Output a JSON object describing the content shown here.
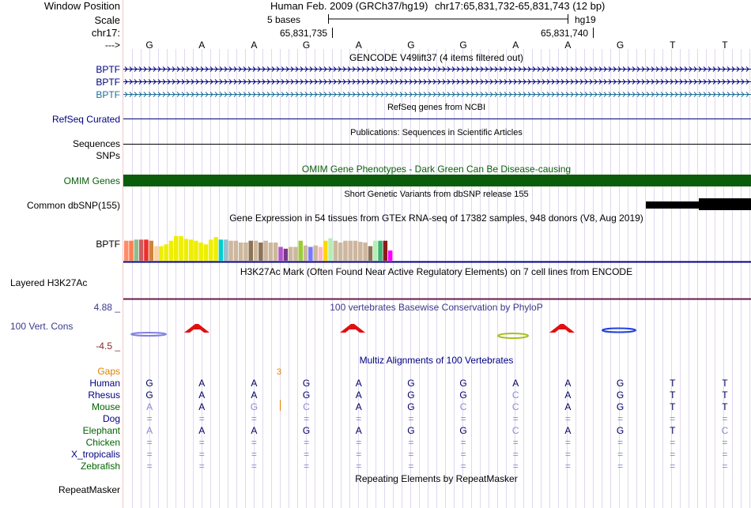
{
  "header": {
    "window_position_label": "Window Position",
    "assembly_text": "Human Feb. 2009 (GRCh37/hg19)",
    "position_text": "chr17:65,831,732-65,831,743 (12 bp)",
    "scale_label": "Scale",
    "scale_text": "5 bases",
    "scale_db": "hg19",
    "chrom_label": "chr17:",
    "pos_tick_1": "65,831,735",
    "pos_tick_2": "65,831,740",
    "strand_label": "--->"
  },
  "bases": [
    "G",
    "A",
    "A",
    "G",
    "A",
    "G",
    "G",
    "A",
    "A",
    "G",
    "T",
    "T"
  ],
  "tracks": {
    "gencode_title": "GENCODE V49lift37 (4 items filtered out)",
    "gencode_genes": [
      "BPTF",
      "BPTF",
      "BPTF"
    ],
    "refseq_title": "RefSeq genes from NCBI",
    "refseq_label": "RefSeq Curated",
    "pubs_title": "Publications: Sequences in Scientific Articles",
    "pubs_label": "Sequences",
    "snps_label": "SNPs",
    "omim_title": "OMIM Gene Phenotypes - Dark Green Can Be Disease-causing",
    "omim_label": "OMIM Genes",
    "dbsnp_title": "Short Genetic Variants from dbSNP release 155",
    "dbsnp_label": "Common dbSNP(155)",
    "gtex_title": "Gene Expression in 54 tissues from GTEx RNA-seq of 17382 samples, 948 donors (V8, Aug 2019)",
    "gtex_label": "BPTF",
    "h3k27_title": "H3K27Ac Mark (Often Found Near Active Regulatory Elements) on 7 cell lines from ENCODE",
    "h3k27_label": "Layered H3K27Ac",
    "cons_title": "100 vertebrates Basewise Conservation by PhyloP",
    "cons_label": "100 Vert. Cons",
    "cons_max": "4.88 _",
    "cons_min": "-4.5 _",
    "multiz_title": "Multiz Alignments of 100 Vertebrates",
    "gaps_label": "Gaps",
    "gaps_value": "3",
    "rmsk_title": "Repeating Elements by RepeatMasker",
    "rmsk_label": "RepeatMasker"
  },
  "gtex_levels": [
    0.55,
    0.55,
    0.58,
    0.58,
    0.58,
    0.55,
    0.4,
    0.4,
    0.45,
    0.55,
    0.68,
    0.68,
    0.6,
    0.58,
    0.55,
    0.5,
    0.45,
    0.58,
    0.65,
    0.58,
    0.58,
    0.55,
    0.55,
    0.5,
    0.5,
    0.55,
    0.55,
    0.5,
    0.55,
    0.5,
    0.5,
    0.38,
    0.33,
    0.38,
    0.38,
    0.55,
    0.42,
    0.38,
    0.42,
    0.38,
    0.55,
    0.62,
    0.55,
    0.5,
    0.55,
    0.55,
    0.55,
    0.52,
    0.5,
    0.4,
    0.55,
    0.55,
    0.55,
    0.28
  ],
  "gtex_colors": [
    "#ff8c69",
    "#ff7f50",
    "#8fbc8f",
    "#cd5c5c",
    "#ee2c2c",
    "#cd853f",
    "#ffd39b",
    "#eeee00",
    "#eeee00",
    "#eeee00",
    "#eeee00",
    "#eeee00",
    "#eeee00",
    "#eeee00",
    "#eeee00",
    "#eeee00",
    "#eeee00",
    "#eeee00",
    "#eeee00",
    "#00cdcd",
    "#9ac0cd",
    "#cdb79e",
    "#cdb79e",
    "#cdb79e",
    "#cdb79e",
    "#8b7355",
    "#cdb79e",
    "#8b7355",
    "#cdb79e",
    "#cdb79e",
    "#cdb79e",
    "#b452cd",
    "#7a378b",
    "#cdb79e",
    "#cdb79e",
    "#9acd32",
    "#cdb79e",
    "#7777ff",
    "#cdb79e",
    "#ffb6c1",
    "#ffd700",
    "#b4eeb4",
    "#cdb79e",
    "#cdb79e",
    "#cdb79e",
    "#cdb79e",
    "#cdb79e",
    "#cdb79e",
    "#cdb79e",
    "#8b7355",
    "#b4eeb4",
    "#3cb371",
    "#8b1a1a",
    "#ff00ff"
  ],
  "alignment": {
    "species": [
      {
        "name": "Human",
        "color": "#000080",
        "seq": [
          "G",
          "A",
          "A",
          "G",
          "A",
          "G",
          "G",
          "A",
          "A",
          "G",
          "T",
          "T"
        ],
        "faded": [
          0,
          0,
          0,
          0,
          0,
          0,
          0,
          0,
          0,
          0,
          0,
          0
        ]
      },
      {
        "name": "Rhesus",
        "color": "#000080",
        "seq": [
          "G",
          "A",
          "A",
          "G",
          "A",
          "G",
          "G",
          "C",
          "A",
          "G",
          "T",
          "T"
        ],
        "faded": [
          0,
          0,
          0,
          0,
          0,
          0,
          0,
          1,
          0,
          0,
          0,
          0
        ]
      },
      {
        "name": "Mouse",
        "color": "#006400",
        "seq": [
          "A",
          "A",
          "G",
          "C",
          "A",
          "G",
          "C",
          "C",
          "A",
          "G",
          "T",
          "T"
        ],
        "faded": [
          1,
          0,
          1,
          1,
          0,
          0,
          1,
          1,
          0,
          0,
          0,
          0
        ]
      },
      {
        "name": "Dog",
        "color": "#000080",
        "seq": [
          "=",
          "=",
          "=",
          "=",
          "=",
          "=",
          "=",
          "=",
          "=",
          "=",
          "=",
          "="
        ],
        "faded": [
          1,
          1,
          1,
          1,
          1,
          1,
          1,
          1,
          1,
          1,
          1,
          1
        ]
      },
      {
        "name": "Elephant",
        "color": "#006400",
        "seq": [
          "A",
          "A",
          "A",
          "G",
          "A",
          "G",
          "G",
          "C",
          "A",
          "G",
          "T",
          "C"
        ],
        "faded": [
          1,
          0,
          0,
          0,
          0,
          0,
          0,
          1,
          0,
          0,
          0,
          1
        ]
      },
      {
        "name": "Chicken",
        "color": "#006400",
        "seq": [
          "=",
          "=",
          "=",
          "=",
          "=",
          "=",
          "=",
          "=",
          "=",
          "=",
          "=",
          "="
        ],
        "faded": [
          1,
          1,
          1,
          1,
          1,
          1,
          1,
          1,
          1,
          1,
          1,
          1
        ]
      },
      {
        "name": "X_tropicalis",
        "color": "#000080",
        "seq": [
          "=",
          "=",
          "=",
          "=",
          "=",
          "=",
          "=",
          "=",
          "=",
          "=",
          "=",
          "="
        ],
        "faded": [
          1,
          1,
          1,
          1,
          1,
          1,
          1,
          1,
          1,
          1,
          1,
          1
        ]
      },
      {
        "name": "Zebrafish",
        "color": "#006400",
        "seq": [
          "=",
          "=",
          "=",
          "=",
          "=",
          "=",
          "=",
          "=",
          "=",
          "=",
          "=",
          "="
        ],
        "faded": [
          1,
          1,
          1,
          1,
          1,
          1,
          1,
          1,
          1,
          1,
          1,
          1
        ]
      }
    ]
  },
  "colors": {
    "gene": "#000080",
    "gene_alt": "#1e6e96",
    "omim": "#0b5d0b",
    "cons_title": "#3a3a8a",
    "cons_max": "#3a3a8a",
    "cons_min": "#8b2a2a",
    "gaps": "#e08000",
    "h3k27": "#6a1a4a",
    "red_track": "#d02020",
    "guide": "#e0d8f0"
  }
}
